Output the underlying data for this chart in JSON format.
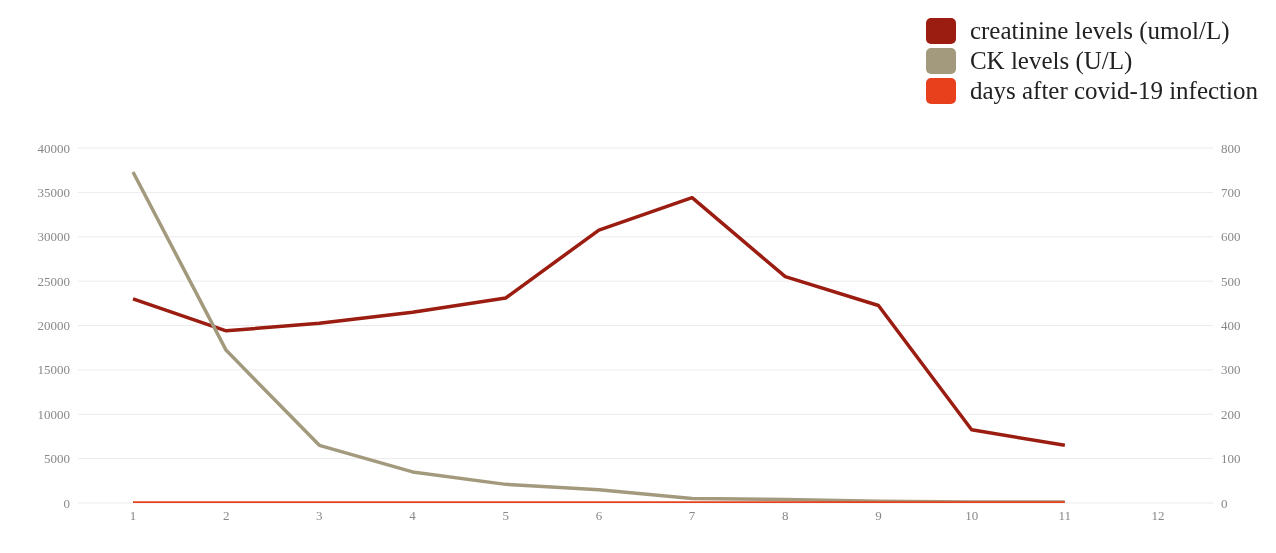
{
  "chart_data": {
    "type": "line",
    "categories": [
      "1",
      "2",
      "3",
      "4",
      "5",
      "6",
      "7",
      "8",
      "9",
      "10",
      "11",
      "12"
    ],
    "series": [
      {
        "name": "creatinine levels (umol/L)",
        "color": "#9b1c10",
        "axis": "y2",
        "values": [
          460,
          388,
          405,
          430,
          462,
          615,
          688,
          510,
          445,
          165,
          130,
          null
        ]
      },
      {
        "name": "CK levels (U/L)",
        "color": "#a39a7e",
        "values": [
          37300,
          17200,
          6500,
          3500,
          2100,
          1500,
          500,
          400,
          200,
          100,
          100,
          null
        ]
      },
      {
        "name": "days after covid-19 infection",
        "color": "#e8401c",
        "values": [
          0,
          0,
          0,
          0,
          0,
          0,
          0,
          0,
          0,
          0,
          0,
          null
        ]
      }
    ],
    "ylim": [
      0,
      40000
    ],
    "yticks": [
      0,
      5000,
      10000,
      15000,
      20000,
      25000,
      30000,
      35000,
      40000
    ],
    "y2lim": [
      0,
      800
    ],
    "y2ticks": [
      0,
      100,
      200,
      300,
      400,
      500,
      600,
      700,
      800
    ],
    "grid": "y",
    "legend": "top right",
    "marker": "none",
    "line_style": "solid"
  }
}
